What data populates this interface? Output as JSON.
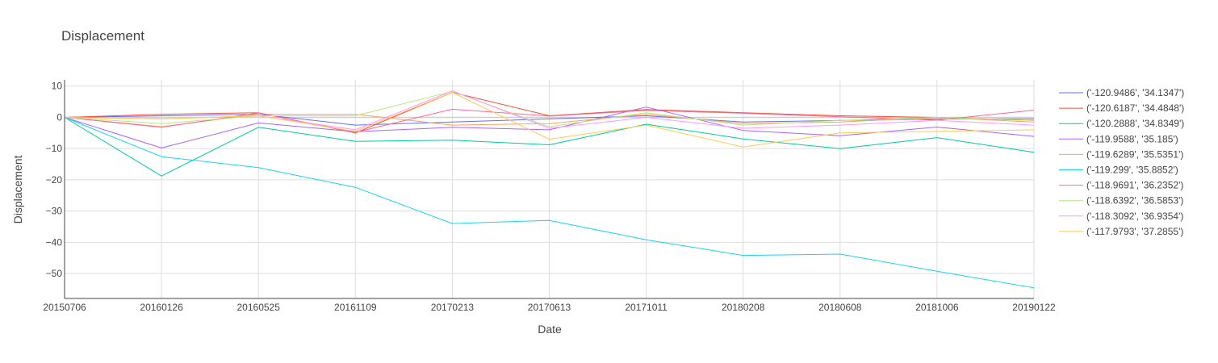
{
  "chart_data": {
    "type": "line",
    "title": "Displacement",
    "xlabel": "Date",
    "ylabel": "Displacement",
    "ylim": [
      -58,
      12
    ],
    "yticks": [
      10,
      0,
      -10,
      -20,
      -30,
      -40,
      -50
    ],
    "ytick_labels": [
      "10",
      "0",
      "−10",
      "−20",
      "−30",
      "−40",
      "−50"
    ],
    "grid": true,
    "legend_position": "right",
    "categories": [
      "20150706",
      "20160126",
      "20160525",
      "20161109",
      "20170213",
      "20170613",
      "20171011",
      "20180208",
      "20180608",
      "20181006",
      "20190122"
    ],
    "series": [
      {
        "name": "('-120.9486', '34.1347')",
        "color": "#636efa",
        "values": [
          0,
          0.5,
          1.0,
          -2.5,
          -1.5,
          -0.5,
          0.5,
          -1.5,
          -1.0,
          -0.5,
          -0.5
        ]
      },
      {
        "name": "('-120.6187', '34.4848')",
        "color": "#ef553b",
        "values": [
          0,
          1.0,
          1.5,
          -5.0,
          8.0,
          0.5,
          2.5,
          1.5,
          0.5,
          0.0,
          -1.0
        ]
      },
      {
        "name": "('-120.2888', '34.8349')",
        "color": "#00cc96",
        "values": [
          0,
          -18.8,
          -3.2,
          -7.7,
          -7.3,
          -8.8,
          -2.2,
          -6.9,
          -10.0,
          -6.5,
          -11.2
        ]
      },
      {
        "name": "('-119.9588', '35.185')",
        "color": "#ab63fa",
        "values": [
          0,
          -9.8,
          -1.8,
          -4.6,
          -3.2,
          -4.0,
          3.3,
          -4.2,
          -5.9,
          -3.1,
          -6.1
        ]
      },
      {
        "name": "('-119.6289', '35.5351')",
        "color": "#ffa15a",
        "values": [
          0,
          -3.0,
          1.0,
          1.0,
          -2.5,
          -2.0,
          1.0,
          -2.0,
          -1.5,
          0.0,
          -1.5
        ]
      },
      {
        "name": "('-119.299', '35.8852')",
        "color": "#19d3f3",
        "values": [
          0,
          -12.6,
          -16.1,
          -22.4,
          -34.0,
          -33.0,
          -39.2,
          -44.2,
          -43.8,
          -49.3,
          -54.6
        ]
      },
      {
        "name": "('-118.9691', '36.2352')",
        "color": "#ff6692",
        "values": [
          0,
          -3.2,
          1.4,
          -4.8,
          2.6,
          0.4,
          2.2,
          1.3,
          0.2,
          -0.9,
          2.3
        ]
      },
      {
        "name": "('-118.6392', '36.5853')",
        "color": "#b6e880",
        "values": [
          0,
          -2.0,
          0.5,
          0.5,
          8.3,
          -3.0,
          1.5,
          -2.5,
          -1.0,
          0.0,
          -1.0
        ]
      },
      {
        "name": "('-118.3092', '36.9354')",
        "color": "#ff97ff",
        "values": [
          0,
          -0.5,
          0.5,
          -4.0,
          8.5,
          -3.5,
          0.0,
          -3.5,
          -2.5,
          -1.0,
          -2.5
        ]
      },
      {
        "name": "('-117.9793', '37.2855')",
        "color": "#fecb52",
        "values": [
          0,
          -0.5,
          0.5,
          -4.5,
          8.0,
          -7.0,
          -2.5,
          -9.5,
          -5.0,
          -4.5,
          -4.0
        ]
      }
    ]
  }
}
